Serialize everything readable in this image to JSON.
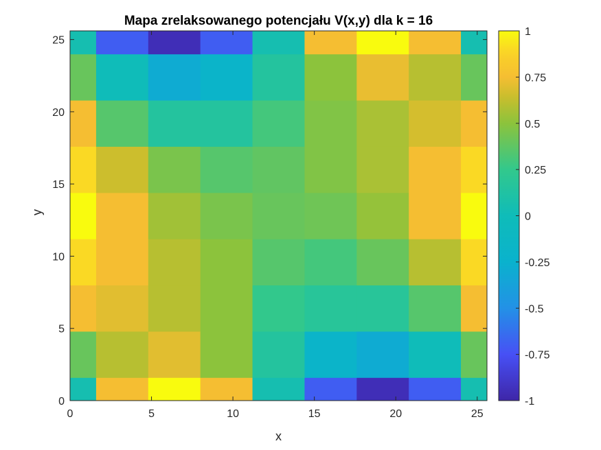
{
  "chart_data": {
    "type": "heatmap",
    "title": "Mapa zrelaksowanego potencjału V(x,y) dla k = 16",
    "xlabel": "x",
    "ylabel": "y",
    "xlim": [
      0,
      25.6
    ],
    "ylim": [
      0,
      25.6
    ],
    "x_ticks": [
      0,
      5,
      10,
      15,
      20,
      25
    ],
    "y_ticks": [
      0,
      5,
      10,
      15,
      20,
      25
    ],
    "x_tick_labels": [
      "0",
      "5",
      "10",
      "15",
      "20",
      "25"
    ],
    "y_tick_labels": [
      "0",
      "5",
      "10",
      "15",
      "20",
      "25"
    ],
    "x_centers": [
      0,
      3.2,
      6.4,
      9.6,
      12.8,
      16,
      19.2,
      22.4,
      25.6
    ],
    "y_centers": [
      0,
      3.2,
      6.4,
      9.6,
      12.8,
      16,
      19.2,
      22.4,
      25.6
    ],
    "values": [
      [
        0.05,
        0.75,
        1.0,
        0.75,
        0.05,
        -0.7,
        -0.95,
        -0.7,
        0.05
      ],
      [
        0.4,
        0.6,
        0.7,
        0.5,
        0.15,
        -0.2,
        -0.3,
        0.0,
        0.4
      ],
      [
        0.75,
        0.7,
        0.6,
        0.5,
        0.25,
        0.18,
        0.18,
        0.35,
        0.75
      ],
      [
        0.9,
        0.75,
        0.6,
        0.5,
        0.35,
        0.3,
        0.4,
        0.6,
        0.9
      ],
      [
        1.0,
        0.75,
        0.55,
        0.45,
        0.4,
        0.42,
        0.52,
        0.75,
        1.0
      ],
      [
        0.9,
        0.65,
        0.45,
        0.35,
        0.38,
        0.47,
        0.57,
        0.75,
        0.9
      ],
      [
        0.75,
        0.35,
        0.15,
        0.15,
        0.3,
        0.47,
        0.57,
        0.67,
        0.75
      ],
      [
        0.4,
        0.0,
        -0.3,
        -0.2,
        0.15,
        0.5,
        0.72,
        0.6,
        0.4
      ],
      [
        0.05,
        -0.7,
        -0.95,
        -0.7,
        0.05,
        0.75,
        1.0,
        0.75,
        0.05
      ]
    ],
    "colorbar": {
      "range": [
        -1,
        1
      ],
      "ticks": [
        -1,
        -0.75,
        -0.5,
        -0.25,
        0,
        0.25,
        0.5,
        0.75,
        1
      ],
      "tick_labels": [
        "-1",
        "-0.75",
        "-0.5",
        "-0.25",
        "0",
        "0.25",
        "0.5",
        "0.75",
        "1"
      ]
    },
    "colormap": "parula",
    "grid": false
  }
}
